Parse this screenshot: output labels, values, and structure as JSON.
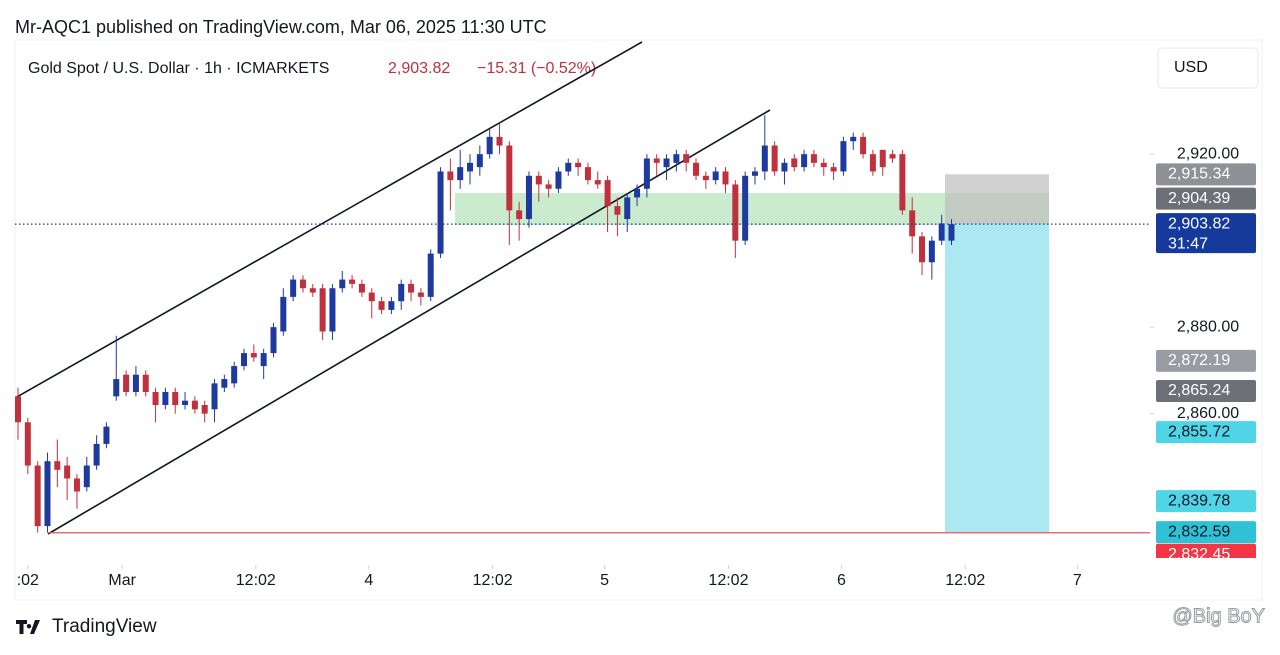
{
  "chart_data": {
    "type": "candlestick",
    "title": "Mr-AQC1 published on TradingView.com, Mar 06, 2025 11:30 UTC",
    "symbol": "Gold Spot / U.S. Dollar · 1h · ICMARKETS",
    "price": "2,903.82",
    "change": "−15.31 (−0.52%)",
    "currency": "USD",
    "countdown": "31:47",
    "brand": "TradingView",
    "watermark": "@Big BoY",
    "up_color": "#1f3a9e",
    "down_color": "#c1303d",
    "x": [
      0,
      1,
      2,
      3,
      4,
      5,
      6,
      7,
      8,
      9,
      10,
      11,
      12,
      13,
      14,
      15,
      16,
      17,
      18,
      19,
      20,
      21,
      22,
      23,
      24,
      25,
      26,
      27,
      28,
      29,
      30,
      31,
      32,
      33,
      34,
      35,
      36,
      37,
      38,
      39,
      40,
      41,
      42,
      43,
      44,
      45,
      46,
      47,
      48,
      49,
      50,
      51,
      52,
      53,
      54,
      55,
      56,
      57,
      58,
      59,
      60,
      61,
      62,
      63,
      64,
      65,
      66,
      67,
      68,
      69,
      70,
      71,
      72,
      73,
      74,
      75,
      76,
      77,
      78,
      79,
      80,
      81,
      82,
      83,
      84,
      85,
      86,
      87,
      88,
      89,
      90,
      91,
      92,
      93,
      94,
      95
    ],
    "open": [
      2864,
      2858,
      2848,
      2834,
      2849,
      2848,
      2845,
      2843,
      2848,
      2853,
      2864,
      2869,
      2865,
      2869,
      2865,
      2862,
      2865,
      2862,
      2863,
      2862,
      2861,
      2866,
      2867,
      2871,
      2874,
      2871,
      2874,
      2879,
      2887,
      2891,
      2889,
      2889,
      2879,
      2889,
      2891,
      2890,
      2888,
      2886,
      2884,
      2886,
      2890,
      2888,
      2887,
      2897,
      2916,
      2914,
      2916,
      2917,
      2920,
      2924,
      2922,
      2907,
      2905,
      2915,
      2913,
      2912,
      2916,
      2918,
      2917,
      2914,
      2914,
      2908,
      2905,
      2910,
      2912,
      2919,
      2917,
      2918,
      2920,
      2918,
      2915,
      2914,
      2916,
      2913,
      2900,
      2915,
      2916,
      2922,
      2916,
      2919,
      2917,
      2920,
      2918,
      2917,
      2916,
      2923,
      2924,
      2920,
      2921,
      2920,
      2920,
      2907,
      2901,
      2895,
      2900,
      2900
    ],
    "high": [
      2866,
      2859,
      2849,
      2851,
      2854,
      2850,
      2846,
      2850,
      2855,
      2858,
      2878,
      2870,
      2871,
      2870,
      2866,
      2866,
      2866,
      2865,
      2864,
      2863,
      2868,
      2869,
      2872,
      2875,
      2876,
      2875,
      2881,
      2889,
      2892,
      2892,
      2890,
      2890,
      2890,
      2893,
      2892,
      2891,
      2889,
      2887,
      2887,
      2891,
      2891,
      2889,
      2898,
      2917,
      2919,
      2921,
      2920,
      2922,
      2926,
      2927,
      2923,
      2909,
      2916,
      2916,
      2914,
      2917,
      2919,
      2919,
      2918,
      2916,
      2915,
      2910,
      2911,
      2913,
      2920,
      2920,
      2920,
      2921,
      2921,
      2919,
      2916,
      2917,
      2917,
      2914,
      2916,
      2917,
      2929,
      2923,
      2919,
      2920,
      2921,
      2921,
      2919,
      2918,
      2924,
      2925,
      2925,
      2921,
      2921,
      2921,
      2921,
      2910,
      2902,
      2901,
      2906,
      2905
    ],
    "low": [
      2854,
      2846,
      2832.5,
      2832.5,
      2843,
      2840,
      2838,
      2842,
      2847,
      2852,
      2863,
      2864,
      2864,
      2864,
      2858,
      2861,
      2860,
      2861,
      2860,
      2858,
      2858,
      2865,
      2866,
      2870,
      2872,
      2868,
      2873,
      2878,
      2886,
      2888,
      2887,
      2877,
      2877,
      2888,
      2889,
      2887,
      2882,
      2883,
      2883,
      2884,
      2886,
      2885,
      2886,
      2896,
      2907,
      2912,
      2913,
      2915,
      2919,
      2920,
      2899,
      2900,
      2903,
      2909,
      2910,
      2911,
      2915,
      2915,
      2913,
      2912,
      2902,
      2901,
      2902,
      2908,
      2910,
      2915,
      2914,
      2916,
      2916,
      2914,
      2912,
      2913,
      2911,
      2896,
      2899,
      2913,
      2914,
      2915,
      2913,
      2916,
      2916,
      2917,
      2915,
      2914,
      2915,
      2921,
      2919,
      2915,
      2915,
      2918,
      2906,
      2897,
      2892,
      2891,
      2899,
      2899
    ],
    "close": [
      2858,
      2848,
      2834,
      2849,
      2847,
      2845,
      2842,
      2848,
      2853,
      2857,
      2868,
      2865,
      2869,
      2865,
      2862,
      2865,
      2862,
      2863,
      2861,
      2860,
      2867,
      2868,
      2871,
      2874,
      2873,
      2874,
      2880,
      2887,
      2891,
      2889,
      2888,
      2879,
      2889,
      2891,
      2890,
      2888,
      2886,
      2884,
      2886,
      2890,
      2888,
      2887,
      2897,
      2916,
      2914,
      2917,
      2918,
      2920,
      2924,
      2922,
      2907,
      2905,
      2915,
      2913,
      2912,
      2916,
      2918,
      2917,
      2914,
      2913,
      2908,
      2906,
      2910,
      2912,
      2919,
      2918,
      2919,
      2920,
      2918,
      2915,
      2914,
      2916,
      2913,
      2900,
      2915,
      2916,
      2922,
      2916,
      2918,
      2917,
      2920,
      2918,
      2917,
      2916,
      2923,
      2924,
      2920,
      2916,
      2917,
      2919,
      2907,
      2901,
      2895,
      2900,
      2904,
      2903.82
    ],
    "xlim": [
      -0.3,
      115.2
    ],
    "xticks": [
      {
        "value": 1,
        "label": ":02"
      },
      {
        "value": 10.6,
        "label": "Mar"
      },
      {
        "value": 24.2,
        "label": "12:02"
      },
      {
        "value": 35.7,
        "label": "4"
      },
      {
        "value": 48.3,
        "label": "12:02"
      },
      {
        "value": 59.7,
        "label": "5"
      },
      {
        "value": 72.3,
        "label": "12:02"
      },
      {
        "value": 83.8,
        "label": "6"
      },
      {
        "value": 96.4,
        "label": "12:02"
      },
      {
        "value": 107.8,
        "label": "7"
      }
    ],
    "ylim": [
      2825,
      2946.4
    ],
    "yticks": [
      {
        "value": 2920,
        "label": "2,920.00"
      },
      {
        "value": 2880,
        "label": "2,880.00"
      },
      {
        "value": 2860,
        "label": "2,860.00"
      }
    ],
    "price_tags": [
      {
        "value": 2915.34,
        "label": "2,915.34",
        "color": "#8f9196"
      },
      {
        "value": 2904.39,
        "label": "2,904.39",
        "color": "#6d7077"
      },
      {
        "value": 2903.82,
        "label": "2,903.82",
        "color": "#163a9c"
      },
      {
        "value": 2872.19,
        "label": "2,872.19",
        "color": "#9a9ca1"
      },
      {
        "value": 2865.24,
        "label": "2,865.24",
        "color": "#6d7077"
      },
      {
        "value": 2855.72,
        "label": "2,855.72",
        "color": "#4ed5e6"
      },
      {
        "value": 2839.78,
        "label": "2,839.78",
        "color": "#4ed5e6"
      },
      {
        "value": 2832.59,
        "label": "2,832.59",
        "color": "#2fc2d6"
      },
      {
        "value": 2832.45,
        "label": "2,832.45",
        "color": "#f23645"
      }
    ]
  }
}
